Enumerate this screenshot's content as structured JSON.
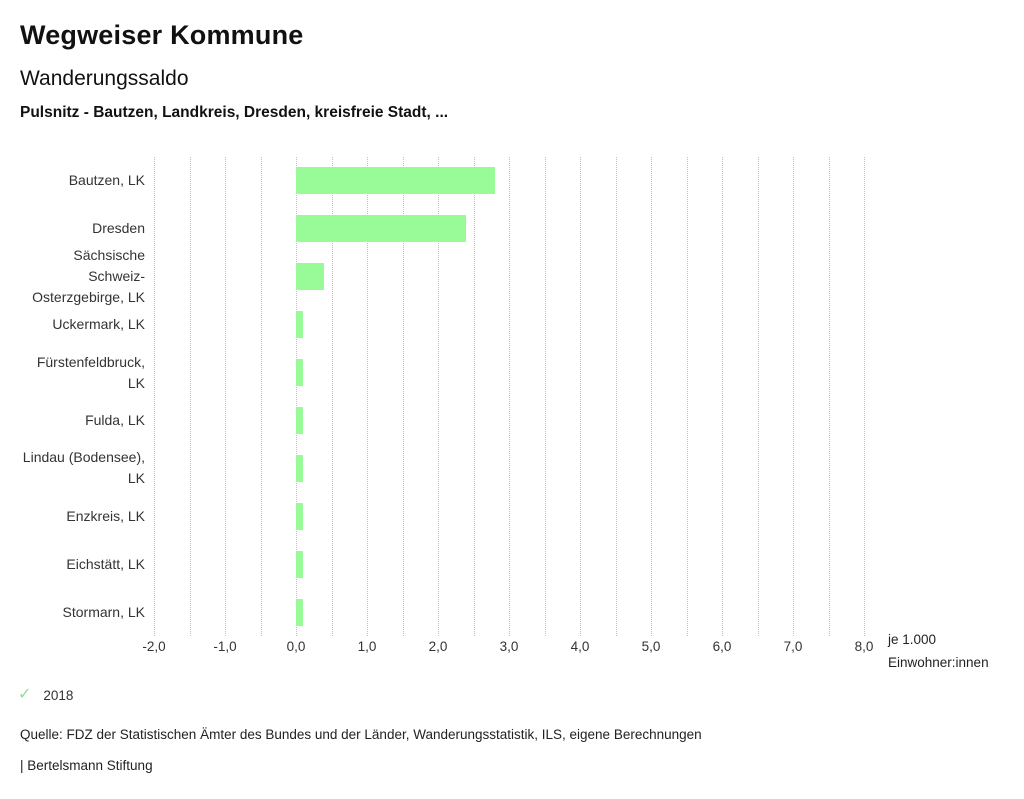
{
  "header": {
    "title": "Wegweiser Kommune",
    "subtitle": "Wanderungssaldo",
    "comparison": "Pulsnitz - Bautzen, Landkreis, Dresden, kreisfreie Stadt, ..."
  },
  "chart_data": {
    "type": "bar",
    "orientation": "horizontal",
    "title": "Wanderungssaldo",
    "categories": [
      "Bautzen, LK",
      "Dresden",
      "Sächsische Schweiz-Osterzgebirge, LK",
      "Uckermark, LK",
      "Fürstenfeldbruck, LK",
      "Fulda, LK",
      "Lindau (Bodensee), LK",
      "Enzkreis, LK",
      "Eichstätt, LK",
      "Stormarn, LK"
    ],
    "series": [
      {
        "name": "2018",
        "values": [
          2.8,
          2.4,
          0.4,
          0.1,
          0.1,
          0.1,
          0.1,
          0.1,
          0.1,
          0.1
        ]
      }
    ],
    "xlabel": "je 1.000 Einwohner:innen",
    "xlim": [
      -2.0,
      8.0
    ],
    "x_tick_step": 1.0,
    "x_ticks": [
      "-2,0",
      "-1,0",
      "0,0",
      "1,0",
      "2,0",
      "3,0",
      "4,0",
      "5,0",
      "6,0",
      "7,0",
      "8,0"
    ],
    "grid_minor_step": 0.5,
    "grid_style": "dotted vertical",
    "legend_position": "bottom-left",
    "bar_color": "#98FB98"
  },
  "axis_unit": {
    "line1": "je 1.000",
    "line2": "Einwohner:innen"
  },
  "legend": {
    "check_icon": "checkmark",
    "label": "2018",
    "check_color": "#8FE08F"
  },
  "footer": {
    "source": "Quelle: FDZ der Statistischen Ämter des Bundes und der Länder, Wanderungsstatistik, ILS, eigene Berechnungen",
    "attribution": "| Bertelsmann Stiftung"
  },
  "colors": {
    "bar": "#98FB98",
    "grid": "#bfbfbf",
    "text": "#333333",
    "title": "#111111"
  }
}
